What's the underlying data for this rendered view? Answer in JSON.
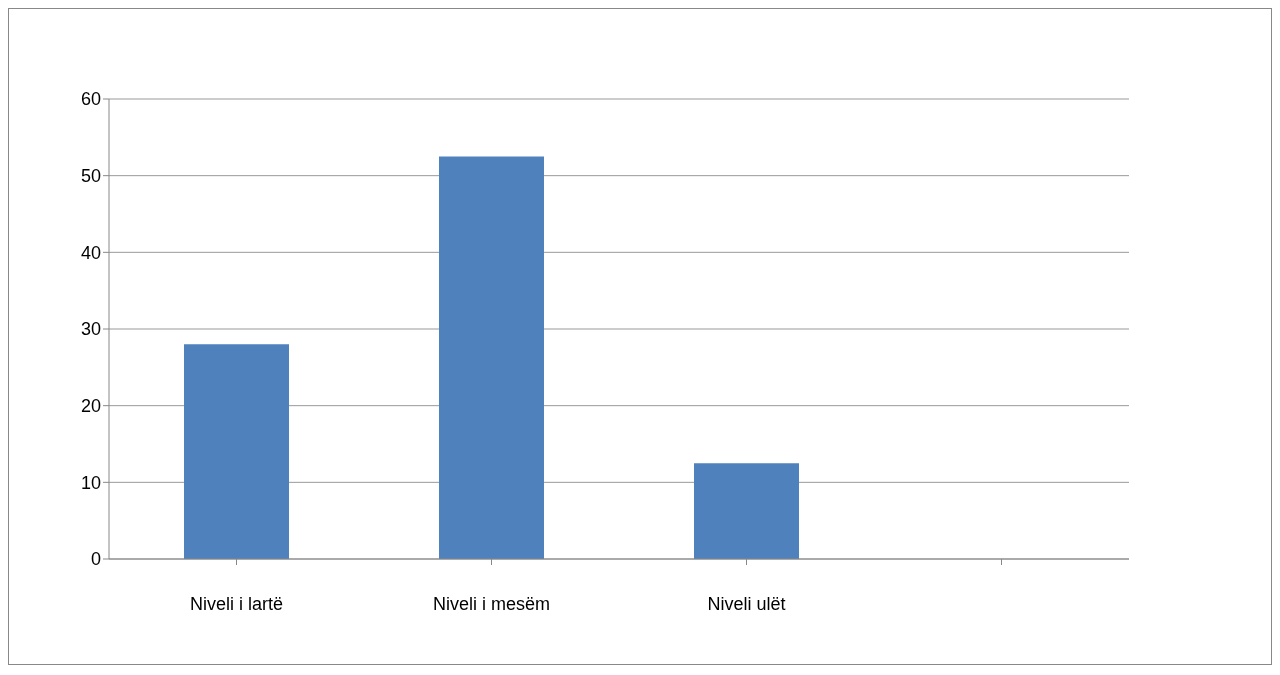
{
  "chart_data": {
    "type": "bar",
    "categories": [
      "Niveli i lartë",
      "Niveli i mesëm",
      "Niveli ulët",
      null
    ],
    "values": [
      28,
      52.5,
      12.5,
      null
    ],
    "color": "#4f81bd",
    "ylim": [
      0,
      60
    ],
    "yticks": [
      0,
      10,
      20,
      30,
      40,
      50,
      60
    ],
    "grid": "y"
  }
}
